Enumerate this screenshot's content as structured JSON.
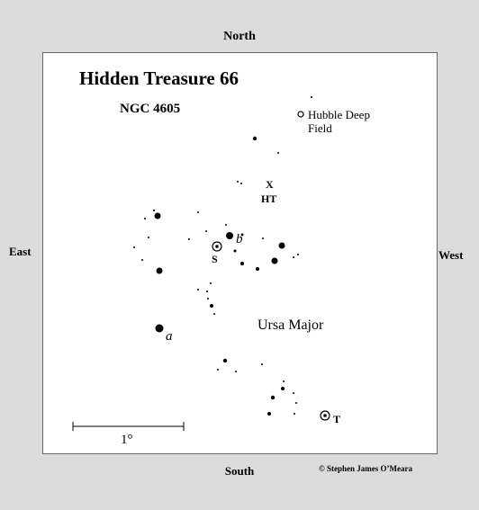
{
  "directions": {
    "north": "North",
    "south": "South",
    "east": "East",
    "west": "West"
  },
  "credit": "© Stephen James O’Meara",
  "title": "Hidden Treasure 66",
  "subtitle": "NGC 4605",
  "labels": {
    "hubble_line1": "Hubble Deep",
    "hubble_line2": "Field",
    "x": "X",
    "ht": "HT",
    "b": "b",
    "s": "S",
    "a": "a",
    "t": "T",
    "constellation": "Ursa Major",
    "scale": "1°"
  }
}
